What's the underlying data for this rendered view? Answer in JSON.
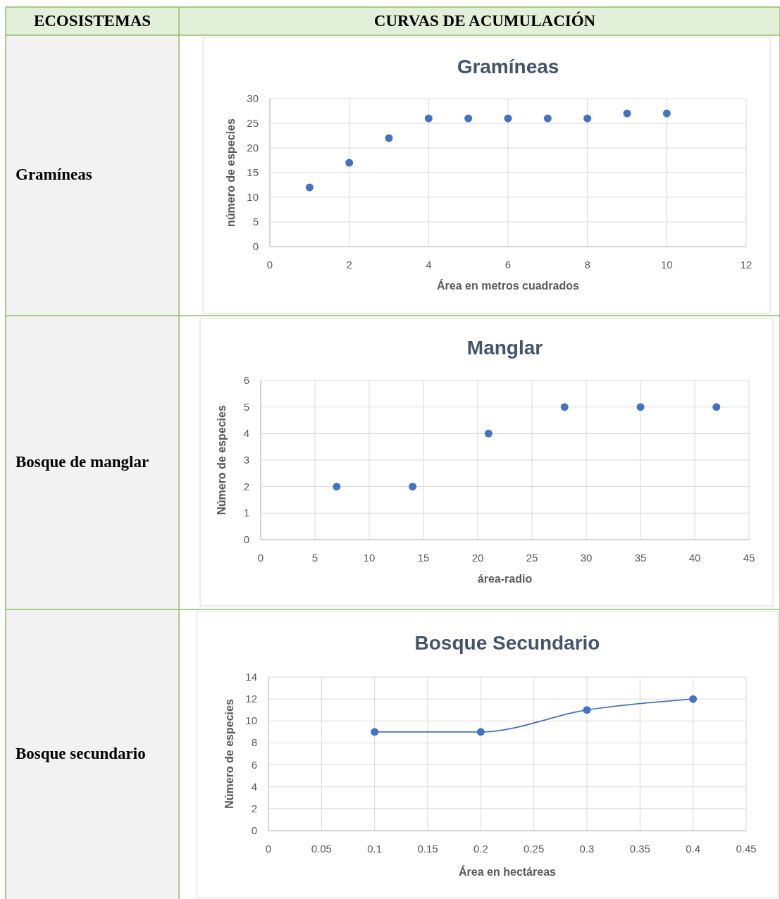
{
  "chart_data": [
    {
      "type": "other",
      "annotations": [
        "ECOSISTEMAS",
        "CURVAS DE ACUMULACIÓN",
        "Gramíneas",
        "Bosque de manglar",
        "Bosque secundario"
      ]
    },
    {
      "type": "scatter",
      "title": "Gramíneas",
      "xlabel": "Área en metros cuadrados",
      "ylabel": "número de especies",
      "x": [
        1,
        2,
        3,
        4,
        5,
        6,
        7,
        8,
        9,
        10
      ],
      "series": [
        {
          "color": "#4472c4",
          "values": [
            12,
            17,
            22,
            26,
            26,
            26,
            26,
            26,
            27,
            27
          ]
        }
      ],
      "xlim": [
        0,
        12
      ],
      "xticks": [
        0,
        2,
        4,
        6,
        8,
        10,
        12
      ],
      "ylim": [
        0,
        30
      ],
      "yticks": [
        0,
        5,
        10,
        15,
        20,
        25,
        30
      ],
      "grid": true,
      "marker": "circle"
    },
    {
      "type": "scatter",
      "title": "Manglar",
      "xlabel": "área-radio",
      "ylabel": "Número de especies",
      "x": [
        7,
        14,
        21,
        28,
        35,
        42
      ],
      "series": [
        {
          "color": "#4472c4",
          "values": [
            2,
            2,
            4,
            5,
            5,
            5
          ]
        }
      ],
      "xlim": [
        0,
        45
      ],
      "xticks": [
        0,
        5,
        10,
        15,
        20,
        25,
        30,
        35,
        40,
        45
      ],
      "ylim": [
        0,
        6
      ],
      "yticks": [
        0,
        1,
        2,
        3,
        4,
        5,
        6
      ],
      "grid": true,
      "marker": "circle"
    },
    {
      "type": "line",
      "title": "Bosque Secundario",
      "xlabel": "Área en hectáreas",
      "ylabel": "Número de especies",
      "x": [
        0.1,
        0.2,
        0.3,
        0.4
      ],
      "series": [
        {
          "color": "#4472c4",
          "values": [
            9,
            9,
            11,
            12
          ]
        }
      ],
      "xlim": [
        0,
        0.45
      ],
      "xticks": [
        0,
        0.05,
        0.1,
        0.15,
        0.2,
        0.25,
        0.3,
        0.35,
        0.4,
        0.45
      ],
      "ylim": [
        0,
        14
      ],
      "yticks": [
        0,
        2,
        4,
        6,
        8,
        10,
        12,
        14
      ],
      "grid": true,
      "marker": "circle"
    }
  ]
}
